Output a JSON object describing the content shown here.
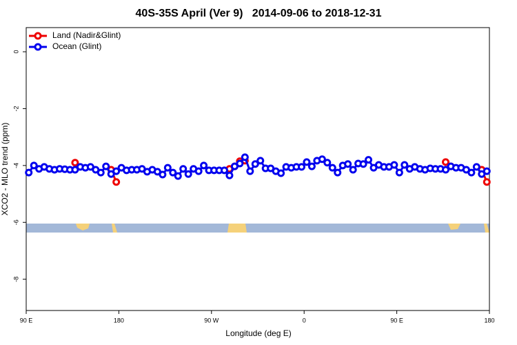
{
  "chart_data": {
    "type": "line",
    "title": "40S-35S April (Ver 9)   2014-09-06 to 2018-12-31",
    "x_label": "Longitude (deg E)",
    "y_label": "XCO2 - MLO trend (ppm)",
    "x": [
      92.5,
      97.5,
      102.5,
      107.5,
      112.5,
      117.5,
      122.5,
      127.5,
      132.5,
      137.5,
      142.5,
      147.5,
      152.5,
      157.5,
      162.5,
      167.5,
      172.5,
      177.5,
      182.5,
      187.5,
      192.5,
      197.5,
      202.5,
      207.5,
      212.5,
      217.5,
      222.5,
      227.5,
      232.5,
      237.5,
      242.5,
      247.5,
      252.5,
      257.5,
      262.5,
      267.5,
      272.5,
      277.5,
      282.5,
      287.5,
      292.5,
      297.5,
      302.5,
      307.5,
      312.5,
      317.5,
      322.5,
      327.5,
      332.5,
      337.5,
      342.5,
      347.5,
      352.5,
      357.5,
      362.5,
      367.5,
      372.5,
      377.5,
      382.5,
      387.5,
      392.5,
      397.5,
      402.5,
      407.5,
      412.5,
      417.5,
      422.5,
      427.5,
      432.5,
      437.5,
      442.5,
      447.5,
      452.5,
      457.5,
      462.5,
      467.5,
      472.5,
      477.5,
      482.5,
      487.5,
      492.5,
      497.5,
      502.5,
      507.5,
      512.5,
      517.5,
      522.5,
      527.5,
      532.5,
      537.5
    ],
    "series": [
      {
        "name": "Land (Nadir&Glint)",
        "color": "#ee0000",
        "values": [
          null,
          null,
          null,
          null,
          null,
          null,
          null,
          null,
          null,
          -3.9,
          null,
          null,
          null,
          null,
          null,
          null,
          -4.15,
          -4.58,
          null,
          null,
          null,
          null,
          null,
          null,
          null,
          null,
          null,
          null,
          null,
          null,
          null,
          null,
          null,
          null,
          null,
          null,
          null,
          null,
          null,
          -4.12,
          -4.03,
          -3.85,
          -3.83,
          null,
          null,
          null,
          null,
          null,
          null,
          null,
          null,
          null,
          null,
          null,
          null,
          null,
          null,
          null,
          null,
          null,
          null,
          null,
          null,
          null,
          null,
          null,
          null,
          null,
          null,
          null,
          null,
          null,
          null,
          null,
          null,
          null,
          null,
          null,
          null,
          null,
          null,
          -3.88,
          -4.03,
          null,
          null,
          null,
          null,
          null,
          -4.15,
          -4.58
        ]
      },
      {
        "name": "Ocean (Glint)",
        "color": "#0000ee",
        "values": [
          -4.25,
          -4.0,
          -4.12,
          -4.05,
          -4.12,
          -4.15,
          -4.12,
          -4.13,
          -4.15,
          -4.15,
          -4.05,
          -4.08,
          -4.05,
          -4.15,
          -4.25,
          -4.03,
          -4.3,
          -4.2,
          -4.08,
          -4.17,
          -4.15,
          -4.15,
          -4.12,
          -4.22,
          -4.15,
          -4.22,
          -4.32,
          -4.08,
          -4.25,
          -4.37,
          -4.12,
          -4.3,
          -4.12,
          -4.2,
          -4.0,
          -4.17,
          -4.17,
          -4.17,
          -4.17,
          -4.35,
          -4.03,
          -3.93,
          -3.71,
          -4.2,
          -3.95,
          -3.83,
          -4.1,
          -4.1,
          -4.2,
          -4.27,
          -4.05,
          -4.08,
          -4.05,
          -4.05,
          -3.88,
          -4.03,
          -3.83,
          -3.78,
          -3.9,
          -4.08,
          -4.25,
          -4.0,
          -3.95,
          -4.15,
          -3.93,
          -3.95,
          -3.8,
          -4.08,
          -3.98,
          -4.05,
          -4.05,
          -3.98,
          -4.25,
          -3.98,
          -4.12,
          -4.05,
          -4.12,
          -4.15,
          -4.1,
          -4.12,
          -4.12,
          -4.15,
          -4.03,
          -4.08,
          -4.08,
          -4.15,
          -4.25,
          -4.05,
          -4.3,
          -4.2
        ]
      }
    ],
    "xlim": [
      90,
      540
    ],
    "xticks": [
      {
        "value": 90,
        "label": "90 E"
      },
      180,
      {
        "value": 270,
        "label": "90 W"
      },
      {
        "value": 360,
        "label": "0"
      },
      {
        "value": 450,
        "label": "90 E"
      },
      {
        "value": 540,
        "label": "180"
      }
    ],
    "ylim": [
      -9.1,
      0.85
    ],
    "yticks": [
      0,
      -2,
      -4,
      -6,
      -8
    ],
    "legend": "top-left"
  }
}
